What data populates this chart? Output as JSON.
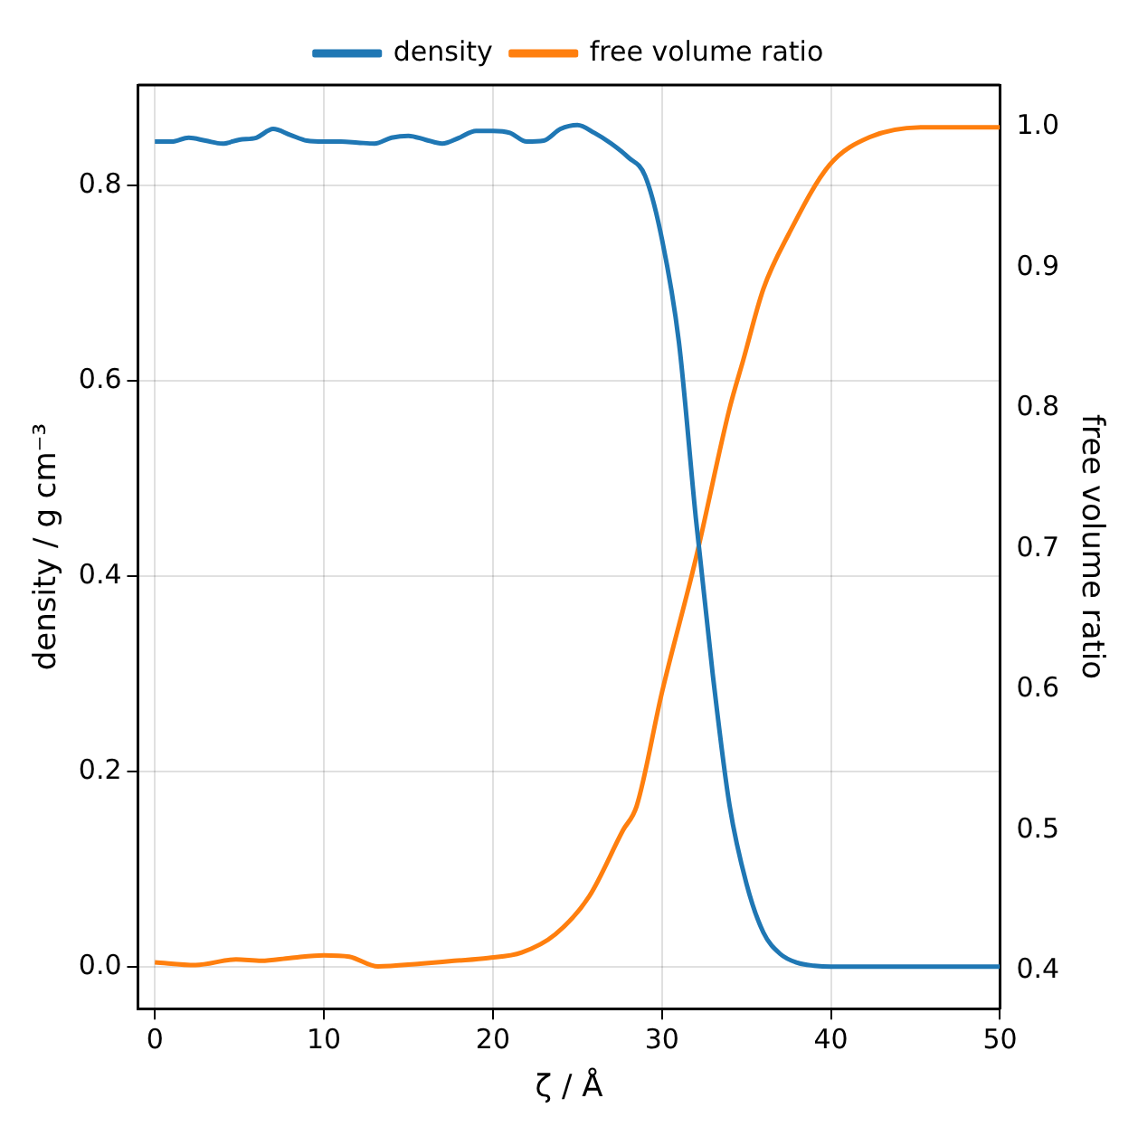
{
  "chart_data": {
    "type": "line",
    "xlabel": "ζ / Å",
    "ylabel": "density / g cm⁻³",
    "y2label": "free volume ratio",
    "xlim": [
      -1,
      50
    ],
    "xticks": [
      0,
      10,
      20,
      30,
      40,
      50
    ],
    "ylim": [
      -0.043,
      0.903
    ],
    "yticks": [
      {
        "value": 0,
        "label": "0.0"
      },
      0.2,
      0.4,
      0.6,
      0.8
    ],
    "y2lim": [
      0.373,
      1.03
    ],
    "y2ticks": [
      0.4,
      0.5,
      0.6,
      0.7,
      0.8,
      0.9,
      {
        "value": 1,
        "label": "1.0"
      }
    ],
    "grid": true,
    "legend": "top",
    "marker": "none",
    "line_style": "solid",
    "series": [
      {
        "name": "density",
        "color": "#1f77b4",
        "axis": "y",
        "x": [
          0,
          1,
          2,
          3,
          4,
          5,
          6,
          7,
          8,
          9,
          10,
          11,
          12,
          13,
          14,
          15,
          16,
          17,
          18,
          19,
          20,
          21,
          22,
          23,
          24,
          25,
          26,
          27,
          28,
          29,
          30,
          31,
          32,
          33,
          34,
          35,
          36,
          37,
          38,
          39,
          40,
          45,
          50
        ],
        "values": [
          0.845,
          0.845,
          0.849,
          0.846,
          0.843,
          0.847,
          0.849,
          0.858,
          0.852,
          0.846,
          0.845,
          0.845,
          0.844,
          0.843,
          0.849,
          0.851,
          0.847,
          0.843,
          0.849,
          0.856,
          0.856,
          0.854,
          0.845,
          0.846,
          0.858,
          0.862,
          0.854,
          0.843,
          0.829,
          0.81,
          0.745,
          0.64,
          0.46,
          0.3,
          0.165,
          0.085,
          0.035,
          0.013,
          0.004,
          0.001,
          0.0,
          0.0,
          0.0
        ]
      },
      {
        "name": "free volume ratio",
        "color": "#ff7f0e",
        "axis": "y2",
        "x": [
          0,
          2.4,
          4.8,
          6.3,
          8,
          10,
          11.5,
          13.2,
          15.7,
          17.7,
          19.7,
          21.7,
          23.7,
          25.7,
          27.7,
          28.5,
          30,
          32,
          34,
          34.8,
          36,
          37.5,
          39.9,
          42.3,
          45.5,
          50
        ],
        "values": [
          0.406,
          0.404,
          0.408,
          0.407,
          0.409,
          0.411,
          0.41,
          0.403,
          0.405,
          0.407,
          0.409,
          0.413,
          0.426,
          0.453,
          0.5,
          0.517,
          0.598,
          0.693,
          0.8,
          0.834,
          0.885,
          0.924,
          0.973,
          0.993,
          1.0,
          1.0
        ]
      }
    ]
  }
}
